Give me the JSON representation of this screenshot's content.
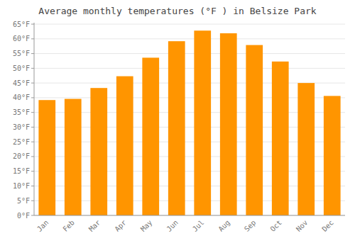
{
  "chart_data": {
    "type": "bar",
    "title": "Average monthly temperatures (°F ) in Belsize Park",
    "categories": [
      "Jan",
      "Feb",
      "Mar",
      "Apr",
      "May",
      "Jun",
      "Jul",
      "Aug",
      "Sep",
      "Oct",
      "Nov",
      "Dec"
    ],
    "values": [
      39.2,
      39.6,
      43.3,
      47.3,
      53.6,
      59.2,
      62.8,
      61.9,
      57.9,
      52.3,
      45.0,
      40.6
    ],
    "color": "#FF9500",
    "ylim": [
      0,
      65.5
    ],
    "yticks": [
      {
        "value": 0,
        "label": "0°F"
      },
      {
        "value": 5,
        "label": "5°F"
      },
      {
        "value": 10,
        "label": "10°F"
      },
      {
        "value": 15,
        "label": "15°F"
      },
      {
        "value": 20,
        "label": "20°F"
      },
      {
        "value": 25,
        "label": "25°F"
      },
      {
        "value": 30,
        "label": "30°F"
      },
      {
        "value": 35,
        "label": "35°F"
      },
      {
        "value": 40,
        "label": "40°F"
      },
      {
        "value": 45,
        "label": "45°F"
      },
      {
        "value": 50,
        "label": "50°F"
      },
      {
        "value": 55,
        "label": "55°F"
      },
      {
        "value": 60,
        "label": "60°F"
      },
      {
        "value": 65,
        "label": "65°F"
      }
    ],
    "grid": true
  }
}
